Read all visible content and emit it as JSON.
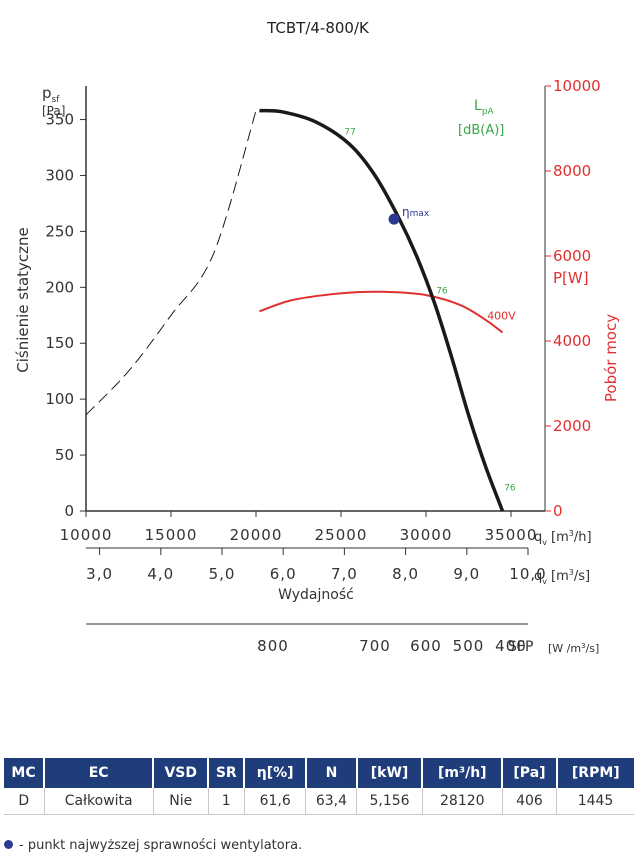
{
  "title": "TCBT/4-800/K",
  "chart_data": {
    "type": "line",
    "title": "TCBT/4-800/K",
    "x": {
      "label": "Wydajność",
      "unit_m3h": "q",
      "unit_m3h_sub": "v",
      "unit_m3h_suffix": "[m",
      "unit_m3h_exp": "3",
      "unit_m3h_end": "/h]",
      "unit_m3s": "q",
      "unit_m3s_sub": "v",
      "unit_m3s_suffix": "[m",
      "unit_m3s_exp": "3",
      "unit_m3s_end": "/s]",
      "range_m3h": [
        10000,
        37000
      ],
      "ticks_m3h": [
        "10000",
        "15000",
        "20000",
        "25000",
        "30000",
        "35000"
      ],
      "ticks_m3s": [
        "3,0",
        "4,0",
        "5,0",
        "6,0",
        "7,0",
        "8,0",
        "9,0",
        "10,0"
      ]
    },
    "y_left": {
      "label": "Ciśnienie statyczne",
      "symbol": "p",
      "symbol_sub": "sf",
      "unit": "[Pa]",
      "range": [
        0,
        380
      ],
      "ticks": [
        "0",
        "50",
        "100",
        "150",
        "200",
        "250",
        "300",
        "350"
      ]
    },
    "y_right": {
      "label": "Pobór mocy",
      "unit": "P[W]",
      "range": [
        0,
        10000
      ],
      "ticks": [
        "0",
        "2000",
        "4000",
        "6000",
        "8000",
        "10000"
      ]
    },
    "lpa": {
      "label": "L",
      "label_sub": "pA",
      "unit": "[dB(A)]"
    },
    "sfp": {
      "label": "SFP",
      "unit": "[W /m",
      "unit_exp": "3",
      "unit_end": "/s]",
      "ticks": [
        {
          "text": "800",
          "q": 21000
        },
        {
          "text": "700",
          "q": 27000
        },
        {
          "text": "600",
          "q": 30000
        },
        {
          "text": "500",
          "q": 32500
        },
        {
          "text": "400",
          "q": 35000
        }
      ]
    },
    "series": [
      {
        "name": "pressure",
        "unit": "Pa",
        "color": "#1a1a1a",
        "points": [
          [
            20200,
            358
          ],
          [
            21500,
            357
          ],
          [
            23500,
            348
          ],
          [
            25500,
            328
          ],
          [
            27000,
            300
          ],
          [
            28400,
            262
          ],
          [
            29500,
            226
          ],
          [
            30500,
            186
          ],
          [
            31500,
            138
          ],
          [
            32500,
            86
          ],
          [
            33500,
            40
          ],
          [
            34500,
            0
          ]
        ]
      },
      {
        "name": "unstable-region",
        "unit": "Pa",
        "color": "#1a1a1a",
        "dashed": true,
        "points": [
          [
            10000,
            86
          ],
          [
            12500,
            125
          ],
          [
            15000,
            175
          ],
          [
            17500,
            230
          ],
          [
            20000,
            358
          ]
        ]
      },
      {
        "name": "power",
        "unit": "W",
        "color": "#e03030",
        "points": [
          [
            20200,
            4700
          ],
          [
            22000,
            4950
          ],
          [
            24000,
            5080
          ],
          [
            26000,
            5150
          ],
          [
            28000,
            5150
          ],
          [
            30000,
            5080
          ],
          [
            32000,
            4850
          ],
          [
            33500,
            4500
          ],
          [
            34500,
            4200
          ]
        ]
      }
    ],
    "annotations": [
      {
        "text": "77",
        "q": 25200,
        "p": 340,
        "color": "#3aa648"
      },
      {
        "text": "76",
        "q": 30600,
        "p": 198,
        "color": "#3aa648"
      },
      {
        "text": "76",
        "q": 34600,
        "p": 22,
        "color": "#3aa648"
      },
      {
        "text": "400V",
        "q": 33600,
        "value_w": 4600,
        "color": "#e03030"
      }
    ],
    "eta_max": {
      "label": "η",
      "label_sub": "max",
      "q": 28120,
      "p": 261,
      "color": "#2b3a8f"
    }
  },
  "table": {
    "headers": [
      "MC",
      "EC",
      "VSD",
      "SR",
      "η[%]",
      "N",
      "[kW]",
      "[m³/h]",
      "[Pa]",
      "[RPM]"
    ],
    "row": [
      "D",
      "Całkowita",
      "Nie",
      "1",
      "61,6",
      "63,4",
      "5,156",
      "28120",
      "406",
      "1445"
    ]
  },
  "footnote": "- punkt najwyższej sprawności wentylatora."
}
